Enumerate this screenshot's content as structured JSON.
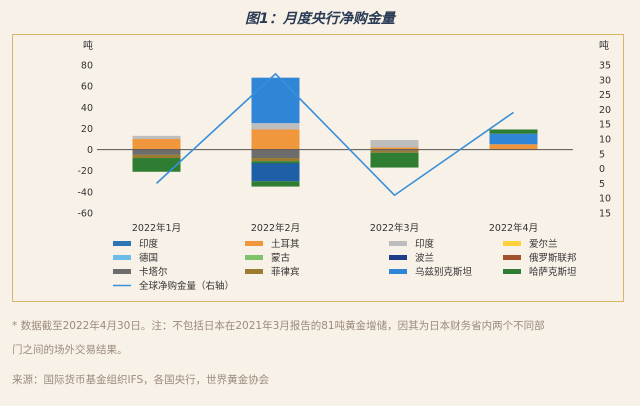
{
  "title": "图1：月度央行净购金量",
  "notes": [
    "* 数据截至2022年4月30日。注：不包括日本在2021年3月报告的81吨黄金增储，因其为日本财务省内两个不同部",
    "门之间的场外交易结果。",
    "来源：国际货币基金组织IFS，各国央行，世界黄金协会"
  ],
  "chart_data": {
    "type": "bar",
    "stacked": true,
    "categories": [
      "2022年1月",
      "2022年2月",
      "2022年3月",
      "2022年4月"
    ],
    "y_left": {
      "label": "吨",
      "ylim": [
        -60,
        80
      ],
      "ticks": [
        -60,
        -40,
        -20,
        0,
        20,
        40,
        60,
        80
      ]
    },
    "y_right": {
      "label": "吨",
      "ylim": [
        -15,
        35
      ],
      "ticks": [
        -15,
        -10,
        -5,
        0,
        5,
        10,
        15,
        20,
        25,
        30,
        35
      ],
      "tick_labels": [
        "15",
        "10",
        "5",
        "0",
        "5",
        "10",
        "15",
        "20",
        "25",
        "30",
        "35"
      ]
    },
    "series": [
      {
        "name": "印度",
        "color": "#2e75b6",
        "values": [
          0,
          0,
          0,
          0
        ]
      },
      {
        "name": "土耳其",
        "color": "#f0963c",
        "values": [
          10,
          19,
          2,
          5
        ]
      },
      {
        "name": "印度",
        "color": "#bdbdbd",
        "values": [
          3,
          6,
          7,
          0
        ]
      },
      {
        "name": "爱尔兰",
        "color": "#ffd13a",
        "values": [
          0,
          0,
          0,
          0
        ]
      },
      {
        "name": "德国",
        "color": "#6bbde8",
        "values": [
          0,
          0,
          0,
          0
        ]
      },
      {
        "name": "蒙古",
        "color": "#7cc36a",
        "values": [
          0,
          0,
          0,
          0
        ]
      },
      {
        "name": "波兰",
        "color": "#1f3c88",
        "values": [
          0,
          0,
          0,
          0
        ]
      },
      {
        "name": "俄罗斯联邦",
        "color": "#a0522d",
        "values": [
          0,
          0,
          0,
          0
        ]
      },
      {
        "name": "卡塔尔",
        "color": "#6d6d6d",
        "values": [
          -5,
          -8,
          -1,
          0
        ]
      },
      {
        "name": "菲律宾",
        "color": "#9a7b2f",
        "values": [
          -3,
          -3,
          -2,
          0
        ]
      },
      {
        "name": "乌兹别克斯坦",
        "color": "#2f86d6",
        "values": [
          0,
          43,
          0,
          10
        ]
      },
      {
        "name": "哈萨克斯坦",
        "color": "#2e7d32",
        "values": [
          -13,
          -4,
          -14,
          4
        ]
      }
    ],
    "line": {
      "name": "全球净购金量（右轴）",
      "color": "#3a8fd9",
      "values": [
        -5,
        32,
        -9,
        19
      ]
    },
    "extra_segments": [
      {
        "category": "2022年2月",
        "color": "#1f5fa8",
        "from": -13,
        "to": -30
      },
      {
        "category": "2022年2月",
        "color": "#2e7d32",
        "from": -30,
        "to": -35
      }
    ],
    "legend_position": "bottom",
    "grid": false
  }
}
